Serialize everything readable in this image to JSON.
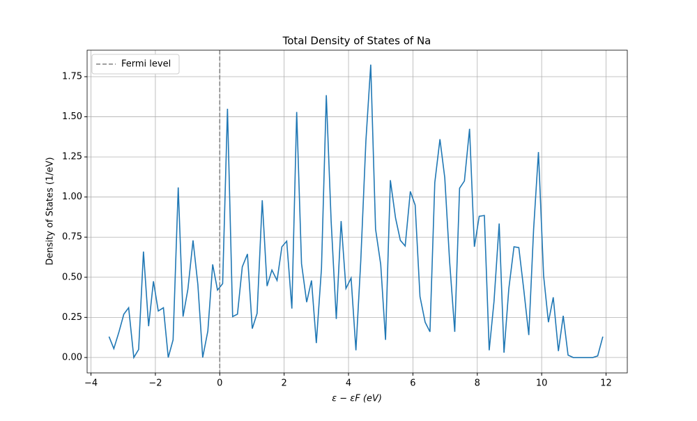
{
  "chart_data": {
    "type": "line",
    "title": "Total Density of States of Na",
    "x_label": "ε − εF (eV)",
    "y_label": "Density of States (1/eV)",
    "x": [
      -3.44,
      -3.29,
      -3.13,
      -2.98,
      -2.83,
      -2.67,
      -2.52,
      -2.37,
      -2.21,
      -2.06,
      -1.91,
      -1.75,
      -1.6,
      -1.45,
      -1.29,
      -1.14,
      -0.99,
      -0.83,
      -0.68,
      -0.53,
      -0.37,
      -0.22,
      -0.07,
      0.09,
      0.24,
      0.4,
      0.55,
      0.7,
      0.86,
      1.01,
      1.16,
      1.32,
      1.47,
      1.62,
      1.78,
      1.93,
      2.08,
      2.24,
      2.39,
      2.54,
      2.7,
      2.85,
      3.0,
      3.16,
      3.31,
      3.46,
      3.62,
      3.77,
      3.92,
      4.08,
      4.23,
      4.38,
      4.54,
      4.69,
      4.84,
      5.0,
      5.15,
      5.3,
      5.46,
      5.61,
      5.76,
      5.92,
      6.07,
      6.22,
      6.38,
      6.53,
      6.68,
      6.84,
      6.99,
      7.14,
      7.3,
      7.45,
      7.6,
      7.76,
      7.91,
      8.06,
      8.22,
      8.37,
      8.52,
      8.68,
      8.83,
      8.98,
      9.14,
      9.29,
      9.44,
      9.6,
      9.75,
      9.9,
      10.06,
      10.21,
      10.36,
      10.52,
      10.67,
      10.82,
      10.98,
      11.13,
      11.28,
      11.44,
      11.59,
      11.74,
      11.9
    ],
    "series": [
      {
        "color": "#1f77b4",
        "values": [
          0.13,
          0.055,
          0.16,
          0.27,
          0.31,
          0.0,
          0.05,
          0.66,
          0.195,
          0.475,
          0.29,
          0.31,
          0.0,
          0.11,
          1.06,
          0.255,
          0.425,
          0.73,
          0.455,
          0.0,
          0.165,
          0.58,
          0.42,
          0.46,
          1.55,
          0.255,
          0.27,
          0.565,
          0.645,
          0.18,
          0.275,
          0.98,
          0.445,
          0.545,
          0.48,
          0.69,
          0.725,
          0.305,
          1.53,
          0.585,
          0.345,
          0.48,
          0.09,
          0.555,
          1.635,
          0.85,
          0.24,
          0.85,
          0.43,
          0.495,
          0.045,
          0.6,
          1.35,
          1.825,
          0.8,
          0.58,
          0.11,
          1.105,
          0.87,
          0.73,
          0.695,
          1.035,
          0.95,
          0.38,
          0.22,
          0.16,
          1.09,
          1.36,
          1.12,
          0.6,
          0.16,
          1.055,
          1.1,
          1.425,
          0.69,
          0.88,
          0.885,
          0.045,
          0.35,
          0.835,
          0.03,
          0.43,
          0.69,
          0.685,
          0.43,
          0.14,
          0.8,
          1.28,
          0.51,
          0.22,
          0.375,
          0.04,
          0.26,
          0.015,
          0.0,
          0.0,
          0.0,
          0.0,
          0.0,
          0.01,
          0.13
        ]
      }
    ],
    "vlines": [
      {
        "name": "Fermi level",
        "x": 0,
        "color": "#808080",
        "dashed": true
      }
    ],
    "xlim": [
      -4.12,
      12.66
    ],
    "ylim": [
      -0.096,
      1.915
    ],
    "xticks": [
      {
        "value": -4,
        "label": "−4"
      },
      {
        "value": -2,
        "label": "−2"
      },
      0,
      2,
      4,
      6,
      8,
      10,
      12
    ],
    "yticks": [
      {
        "value": 0,
        "label": "0.00"
      },
      {
        "value": 0.25,
        "label": "0.25"
      },
      {
        "value": 0.5,
        "label": "0.50"
      },
      {
        "value": 0.75,
        "label": "0.75"
      },
      {
        "value": 1,
        "label": "1.00"
      },
      {
        "value": 1.25,
        "label": "1.25"
      },
      {
        "value": 1.5,
        "label": "1.50"
      },
      {
        "value": 1.75,
        "label": "1.75"
      }
    ],
    "grid": true,
    "legend": "upper-left"
  }
}
